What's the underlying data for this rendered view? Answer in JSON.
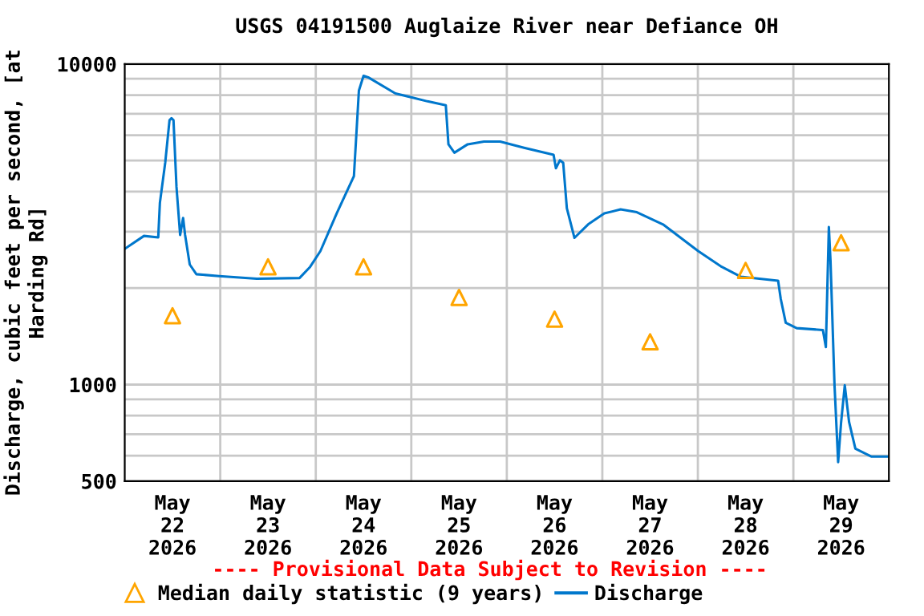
{
  "chart_data": {
    "type": "line",
    "title": "USGS 04191500 Auglaize River near Defiance OH",
    "ylabel": "Discharge, cubic feet per second, [at\nHarding Rd]",
    "annotations": [
      "---- Provisional Data Subject to Revision ----"
    ],
    "log": "y",
    "grid": true,
    "legend": "bottom",
    "xlim": [
      "2026-05-22T00:00",
      "2026-05-30T00:00"
    ],
    "xticks": [
      {
        "value": "2026-05-22T12:00",
        "label": "May\n22\n2026"
      },
      {
        "value": "2026-05-23T12:00",
        "label": "May\n23\n2026"
      },
      {
        "value": "2026-05-24T12:00",
        "label": "May\n24\n2026"
      },
      {
        "value": "2026-05-25T12:00",
        "label": "May\n25\n2026"
      },
      {
        "value": "2026-05-26T12:00",
        "label": "May\n26\n2026"
      },
      {
        "value": "2026-05-27T12:00",
        "label": "May\n27\n2026"
      },
      {
        "value": "2026-05-28T12:00",
        "label": "May\n28\n2026"
      },
      {
        "value": "2026-05-29T12:00",
        "label": "May\n29\n2026"
      },
      {
        "value": "2026-05-23T00:00",
        "label": null
      },
      {
        "value": "2026-05-24T00:00",
        "label": null
      },
      {
        "value": "2026-05-25T00:00",
        "label": null
      },
      {
        "value": "2026-05-26T00:00",
        "label": null
      },
      {
        "value": "2026-05-27T00:00",
        "label": null
      },
      {
        "value": "2026-05-28T00:00",
        "label": null
      },
      {
        "value": "2026-05-29T00:00",
        "label": null
      }
    ],
    "ylim": [
      500,
      10000
    ],
    "yticks": [
      500,
      {
        "value": 600,
        "label": null
      },
      {
        "value": 700,
        "label": null
      },
      {
        "value": 800,
        "label": null
      },
      {
        "value": 900,
        "label": null
      },
      1000,
      {
        "value": 2000,
        "label": null
      },
      {
        "value": 3000,
        "label": null
      },
      {
        "value": 4000,
        "label": null
      },
      {
        "value": 5000,
        "label": null
      },
      {
        "value": 6000,
        "label": null
      },
      {
        "value": 7000,
        "label": null
      },
      {
        "value": 8000,
        "label": null
      },
      {
        "value": 9000,
        "label": null
      },
      10000
    ],
    "series": [
      {
        "name": "Median daily statistic (9 years)",
        "type": "scatter",
        "marker": "triangle",
        "color": "#ffa500",
        "x": [
          "2026-05-22T12:00",
          "2026-05-23T12:00",
          "2026-05-24T12:00",
          "2026-05-25T12:00",
          "2026-05-26T12:00",
          "2026-05-27T12:00",
          "2026-05-28T12:00",
          "2026-05-29T12:00"
        ],
        "values": [
          1640,
          2330,
          2330,
          1870,
          1600,
          1360,
          2270,
          2770
        ]
      },
      {
        "name": "Discharge",
        "color": "#0077cc",
        "x": [
          "2026-05-22T00:10",
          "2026-05-22T04:50",
          "2026-05-22T08:25",
          "2026-05-22T08:50",
          "2026-05-22T10:10",
          "2026-05-22T11:15",
          "2026-05-22T11:45",
          "2026-05-22T12:15",
          "2026-05-22T13:00",
          "2026-05-22T13:55",
          "2026-05-22T14:40",
          "2026-05-22T15:10",
          "2026-05-22T16:20",
          "2026-05-22T18:00",
          "2026-05-22T23:45",
          "2026-05-23T09:10",
          "2026-05-23T19:55",
          "2026-05-23T22:35",
          "2026-05-24T01:10",
          "2026-05-24T05:15",
          "2026-05-24T09:35",
          "2026-05-24T10:50",
          "2026-05-24T12:00",
          "2026-05-24T13:10",
          "2026-05-24T20:00",
          "2026-05-25T04:05",
          "2026-05-25T08:40",
          "2026-05-25T09:20",
          "2026-05-25T10:50",
          "2026-05-25T14:10",
          "2026-05-25T18:15",
          "2026-05-25T22:20",
          "2026-05-26T04:20",
          "2026-05-26T11:45",
          "2026-05-26T12:20",
          "2026-05-26T13:20",
          "2026-05-26T14:10",
          "2026-05-26T15:05",
          "2026-05-26T17:00",
          "2026-05-26T20:25",
          "2026-05-27T00:30",
          "2026-05-27T04:35",
          "2026-05-27T08:40",
          "2026-05-27T15:15",
          "2026-05-28T00:05",
          "2026-05-28T06:00",
          "2026-05-28T10:50",
          "2026-05-28T20:10",
          "2026-05-28T20:50",
          "2026-05-28T22:05",
          "2026-05-29T00:50",
          "2026-05-29T07:25",
          "2026-05-29T08:10",
          "2026-05-29T08:55",
          "2026-05-29T09:20",
          "2026-05-29T10:20",
          "2026-05-29T11:15",
          "2026-05-29T12:00",
          "2026-05-29T12:55",
          "2026-05-29T14:00",
          "2026-05-29T15:35",
          "2026-05-29T19:40",
          "2026-05-29T23:45"
        ],
        "values": [
          2660,
          2910,
          2880,
          3690,
          4920,
          6680,
          6780,
          6680,
          4140,
          2930,
          3310,
          2930,
          2370,
          2210,
          2180,
          2140,
          2150,
          2330,
          2610,
          3420,
          4470,
          8260,
          9190,
          9090,
          8100,
          7650,
          7440,
          5620,
          5290,
          5620,
          5730,
          5730,
          5480,
          5210,
          4730,
          5010,
          4920,
          3550,
          2870,
          3160,
          3420,
          3520,
          3450,
          3160,
          2610,
          2330,
          2170,
          2110,
          1850,
          1560,
          1500,
          1480,
          1310,
          3100,
          2430,
          1000,
          573,
          764,
          995,
          764,
          631,
          596,
          596
        ]
      }
    ]
  }
}
